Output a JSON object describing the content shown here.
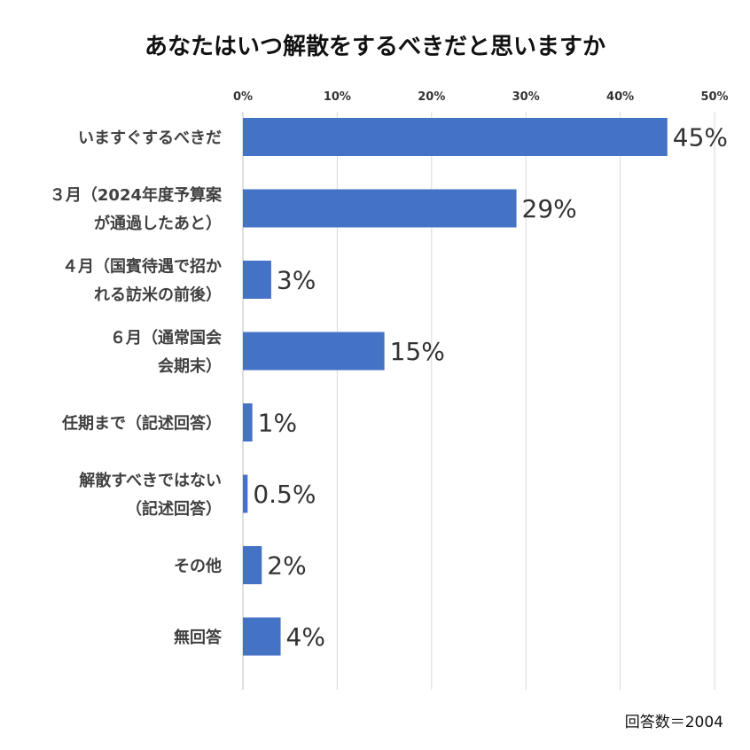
{
  "chart_data": {
    "type": "bar",
    "orientation": "horizontal",
    "title": "あなたはいつ解散をするべきだと思いますか",
    "categories": [
      [
        "いますぐするべきだ"
      ],
      [
        "３月（2024年度予算案",
        "が通過したあと）"
      ],
      [
        "４月（国賓待遇で招か",
        "れる訪米の前後）"
      ],
      [
        "６月（通常国会",
        "会期末）"
      ],
      [
        "任期まで（記述回答）"
      ],
      [
        "解散すべきではない",
        "（記述回答）"
      ],
      [
        "その他"
      ],
      [
        "無回答"
      ]
    ],
    "values": [
      45,
      29,
      3,
      15,
      1,
      0.5,
      2,
      4
    ],
    "value_labels": [
      "45%",
      "29%",
      "3%",
      "15%",
      "1%",
      "0.5%",
      "2%",
      "4%"
    ],
    "xlim": [
      0,
      50
    ],
    "x_ticks": [
      0,
      10,
      20,
      30,
      40,
      50
    ],
    "x_tick_labels": [
      "0%",
      "10%",
      "20%",
      "30%",
      "40%",
      "50%"
    ],
    "x_axis_position": "top",
    "grid": true,
    "legend": "none",
    "bar_color": "#4472C4",
    "note": "回答数＝2004"
  }
}
